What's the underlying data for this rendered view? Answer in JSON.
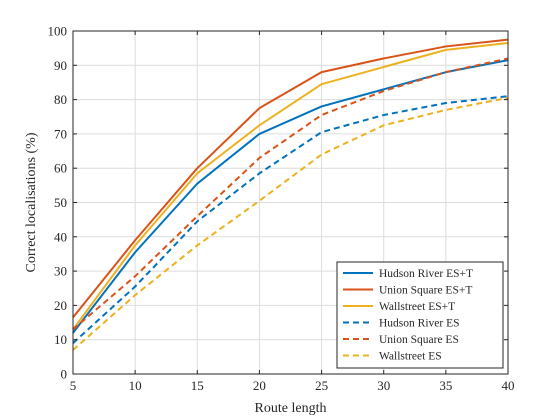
{
  "chart_data": {
    "type": "line",
    "xlabel": "Route length",
    "ylabel": "Correct localisations (%)",
    "xlim": [
      5,
      40
    ],
    "ylim": [
      0,
      100
    ],
    "x_ticks": [
      5,
      10,
      15,
      20,
      25,
      30,
      35,
      40
    ],
    "y_ticks": [
      0,
      10,
      20,
      30,
      40,
      50,
      60,
      70,
      80,
      90,
      100
    ],
    "grid": true,
    "legend_position": "bottom-right",
    "x": [
      5,
      10,
      15,
      20,
      25,
      30,
      35,
      40
    ],
    "series": [
      {
        "name": "Hudson River ES+T",
        "style": "solid",
        "color": "#0072BD",
        "values": [
          12,
          35.5,
          55.5,
          70,
          78,
          83,
          88,
          91.5
        ]
      },
      {
        "name": "Union Square ES+T",
        "style": "solid",
        "color": "#D95319",
        "values": [
          16.5,
          39,
          60,
          77.5,
          88,
          92,
          95.5,
          97.5
        ]
      },
      {
        "name": "Wallstreet ES+T",
        "style": "solid",
        "color": "#EDB120",
        "values": [
          13,
          37.5,
          58.5,
          72.5,
          84.5,
          89.5,
          94.5,
          96.5
        ]
      },
      {
        "name": "Hudson River ES",
        "style": "dashed",
        "color": "#0072BD",
        "values": [
          9,
          25.5,
          44.5,
          58.5,
          70.5,
          75.5,
          79,
          81
        ]
      },
      {
        "name": "Union Square ES",
        "style": "dashed",
        "color": "#D95319",
        "values": [
          13,
          28.5,
          46,
          63,
          75.5,
          82.5,
          88,
          92
        ]
      },
      {
        "name": "Wallstreet ES",
        "style": "dashed",
        "color": "#EDB120",
        "values": [
          7,
          23,
          37.5,
          50.5,
          64,
          72.5,
          77,
          80.5
        ]
      }
    ]
  }
}
